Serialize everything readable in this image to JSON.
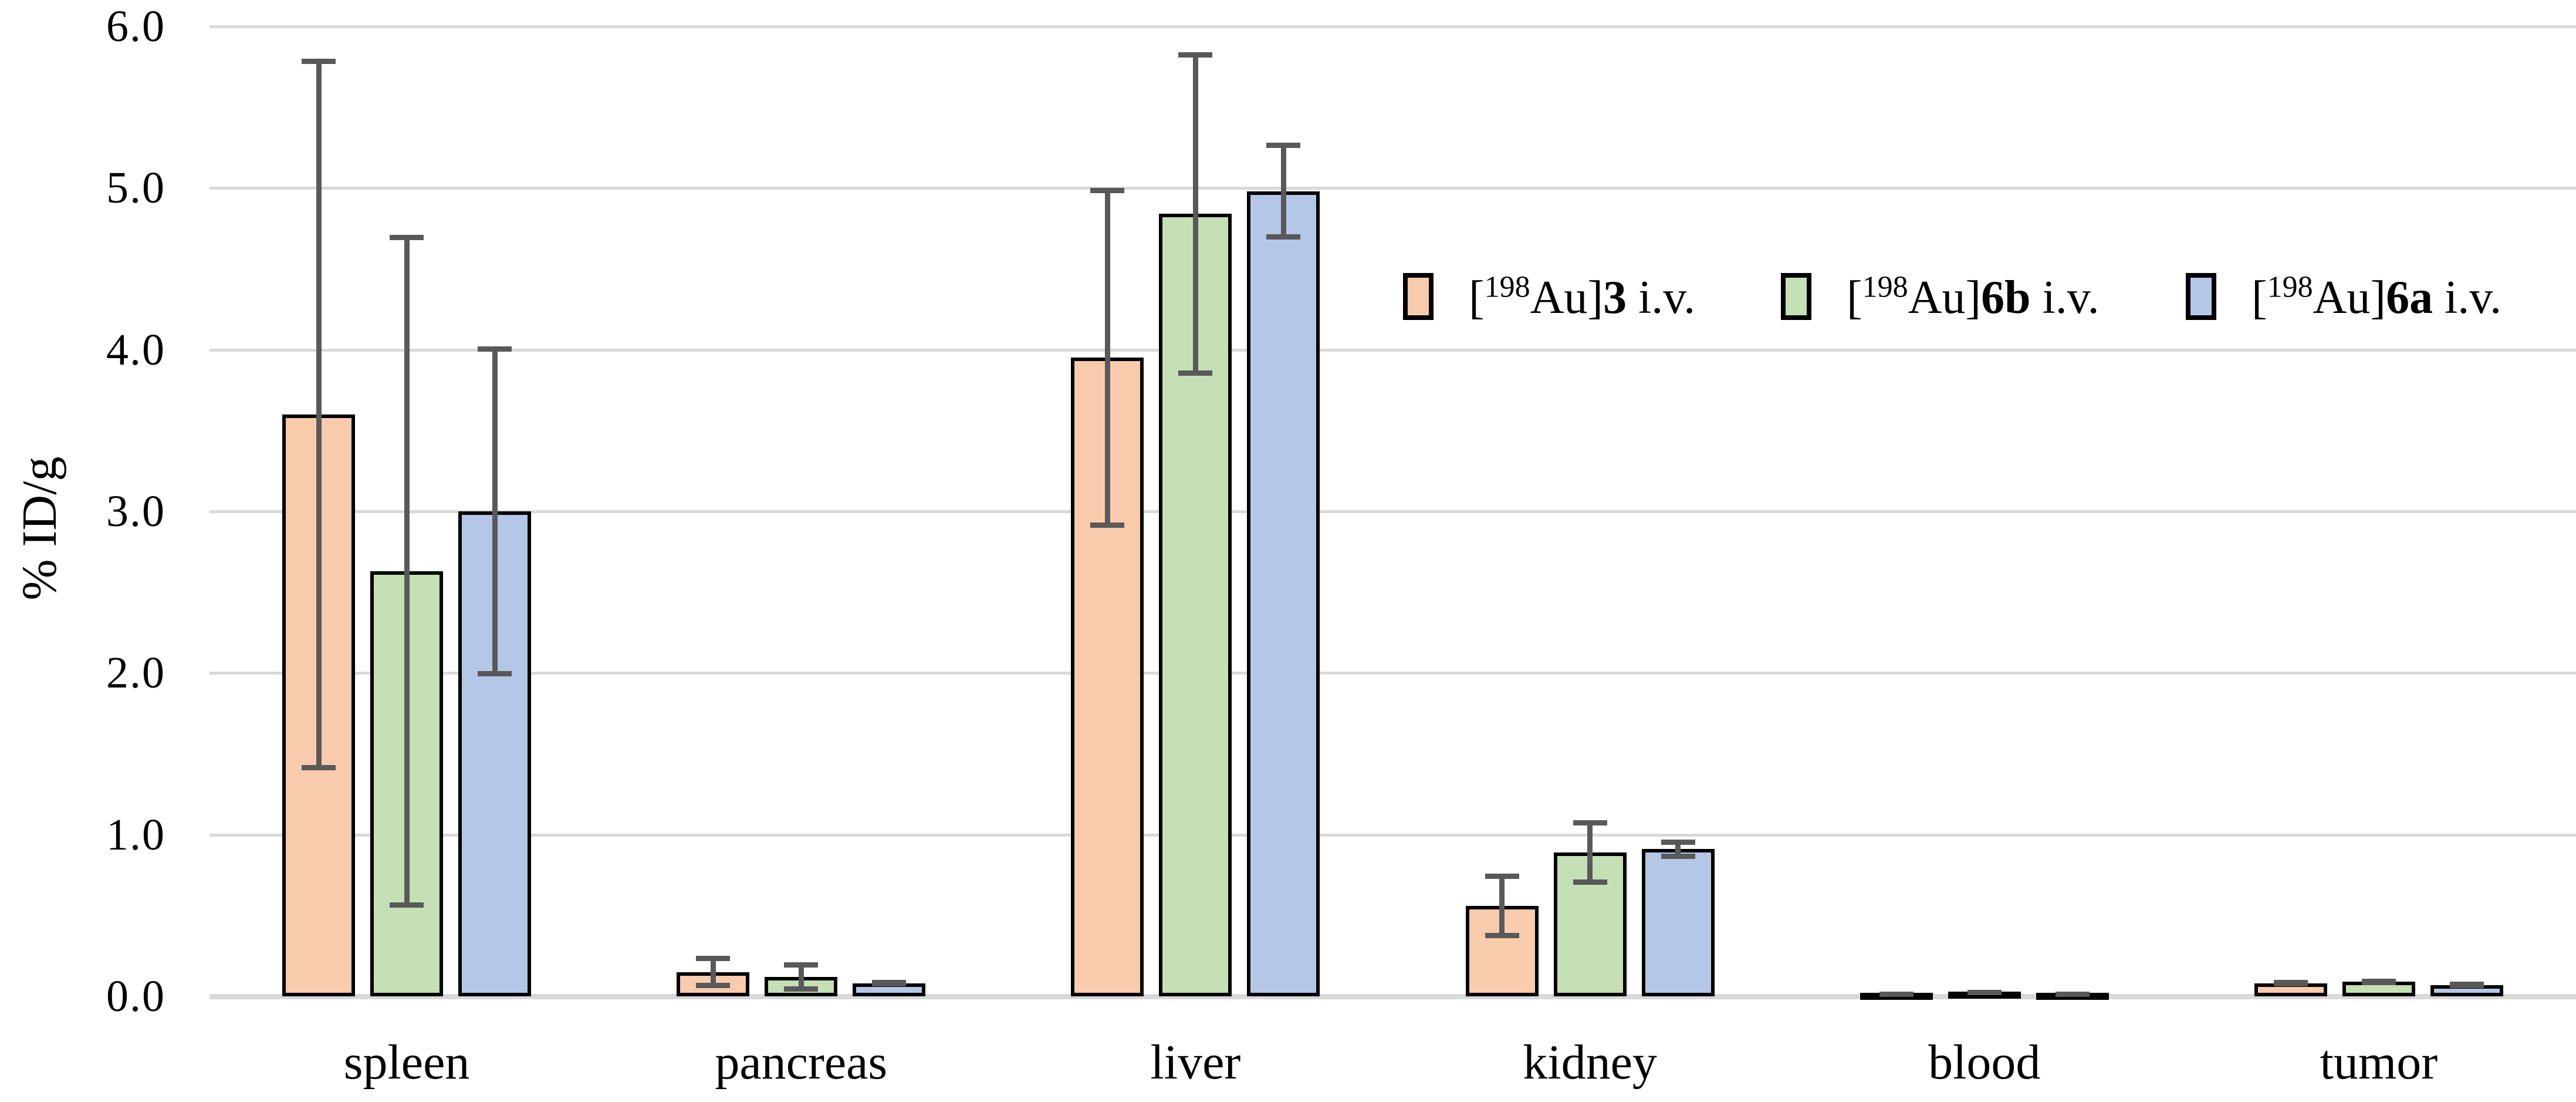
{
  "figure": {
    "background": "#ffffff",
    "text_color": "#000000"
  },
  "chart_data": {
    "type": "bar",
    "title": "",
    "xlabel": "",
    "ylabel": "% ID/g",
    "ylim": [
      0,
      6
    ],
    "grid": "horizontal",
    "gridline_color": "#D9D9D9",
    "bar_border_color": "#000000",
    "error_bar_color": "#595959",
    "legend_position": "upper-right-inside",
    "yticks": [
      {
        "label": "6.0",
        "value": 6.0
      },
      {
        "label": "5.0",
        "value": 5.0
      },
      {
        "label": "4.0",
        "value": 4.0
      },
      {
        "label": "3.0",
        "value": 3.0
      },
      {
        "label": "2.0",
        "value": 2.0
      },
      {
        "label": "1.0",
        "value": 1.0
      },
      {
        "label": "0.0",
        "value": 0.0
      }
    ],
    "categories": [
      "spleen",
      "pancreas",
      "liver",
      "kidney",
      "blood",
      "tumor"
    ],
    "series": [
      {
        "name": "[198Au]3 i.v.",
        "label_parts": {
          "pre": "[",
          "iso": "198",
          "mid": "Au]",
          "code": "3",
          "suffix": " i.v."
        },
        "color": "#F8CBAD",
        "values": [
          3.6,
          0.15,
          3.95,
          0.56,
          0.02,
          0.08
        ],
        "errors": [
          2.2,
          0.1,
          1.05,
          0.2,
          0.01,
          0.02
        ]
      },
      {
        "name": "[198Au]6b i.v.",
        "label_parts": {
          "pre": "[",
          "iso": "198",
          "mid": "Au]",
          "code": "6b",
          "suffix": " i.v."
        },
        "color": "#C5E0B4",
        "values": [
          2.63,
          0.12,
          4.84,
          0.89,
          0.03,
          0.09
        ],
        "errors": [
          2.08,
          0.09,
          1.0,
          0.2,
          0.01,
          0.02
        ]
      },
      {
        "name": "[198Au]6a i.v.",
        "label_parts": {
          "pre": "[",
          "iso": "198",
          "mid": "Au]",
          "code": "6a",
          "suffix": " i.v."
        },
        "color": "#B4C7E7",
        "values": [
          3.0,
          0.08,
          4.98,
          0.91,
          0.02,
          0.07
        ],
        "errors": [
          1.02,
          0.02,
          0.3,
          0.06,
          0.01,
          0.02
        ]
      }
    ]
  }
}
